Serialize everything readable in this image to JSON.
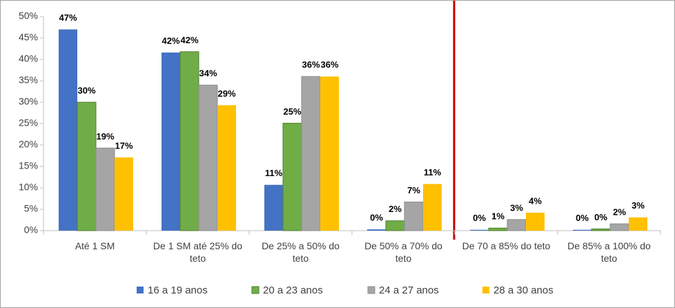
{
  "chart_data": {
    "type": "bar",
    "categories": [
      "Até 1 SM",
      "De 1 SM até 25% do teto",
      "De 25% a 50% do teto",
      "De 50% a 70% do teto",
      "De 70 a 85% do teto",
      "De 85% a 100% do teto"
    ],
    "series": [
      {
        "name": "16 a 19 anos",
        "color": "#4472c4",
        "values": [
          47,
          41.6,
          10.7,
          0.3,
          0.2,
          0.2
        ],
        "value_labels": [
          "47%",
          "42%",
          "11%",
          "0%",
          "0%",
          "0%"
        ]
      },
      {
        "name": "20 a 23 anos",
        "color": "#70ad47",
        "values": [
          30,
          41.8,
          25.1,
          2.3,
          0.6,
          0.4
        ],
        "value_labels": [
          "30%",
          "42%",
          "25%",
          "2%",
          "1%",
          "0%"
        ]
      },
      {
        "name": "24 a 27 anos",
        "color": "#a5a5a5",
        "values": [
          19.3,
          34,
          36,
          6.7,
          2.6,
          1.6
        ],
        "value_labels": [
          "19%",
          "34%",
          "36%",
          "7%",
          "3%",
          "2%"
        ]
      },
      {
        "name": "28 a 30 anos",
        "color": "#ffc000",
        "values": [
          17.1,
          29.3,
          36,
          10.9,
          4.2,
          3.1
        ],
        "value_labels": [
          "17%",
          "29%",
          "36%",
          "11%",
          "4%",
          "3%"
        ]
      }
    ],
    "ylim": [
      0,
      50
    ],
    "yticks": [
      {
        "value": 0,
        "label": "0%"
      },
      {
        "value": 5,
        "label": "5%"
      },
      {
        "value": 10,
        "label": "10%"
      },
      {
        "value": 15,
        "label": "15%"
      },
      {
        "value": 20,
        "label": "20%"
      },
      {
        "value": 25,
        "label": "25%"
      },
      {
        "value": 30,
        "label": "30%"
      },
      {
        "value": 35,
        "label": "35%"
      },
      {
        "value": 40,
        "label": "40%"
      },
      {
        "value": 45,
        "label": "45%"
      },
      {
        "value": 50,
        "label": "50%"
      }
    ],
    "legend": "bottom"
  }
}
